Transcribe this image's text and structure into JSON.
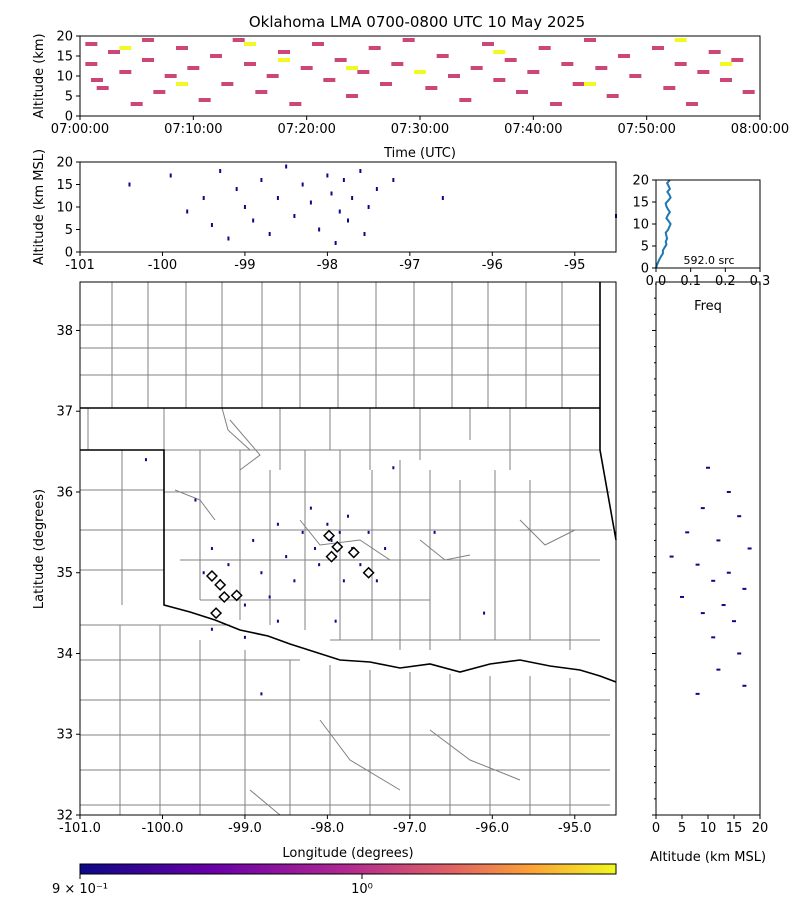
{
  "figure_title": "Oklahoma LMA 0700-0800 UTC 10 May 2025",
  "colors": {
    "station_marker": "#000000",
    "source_low": "#0d0887",
    "source_high": "#f0f921",
    "time_series_mid": "#cc4778",
    "histogram_line": "#1f77b4",
    "county_lines": "#808080",
    "state_lines": "#000000"
  },
  "chart_data": [
    {
      "id": "time-height",
      "type": "scatter",
      "xlabel": "Time (UTC)",
      "ylabel": "Altitude (km)",
      "xlim": [
        "07:00:00",
        "08:00:00"
      ],
      "ylim": [
        0,
        20
      ],
      "x_tick_labels": [
        "07:00:00",
        "07:10:00",
        "07:20:00",
        "07:30:00",
        "07:40:00",
        "07:50:00",
        "08:00:00"
      ],
      "y_tick_labels": [
        "0",
        "5",
        "10",
        "15",
        "20"
      ],
      "series": [
        {
          "color": "#cc4778",
          "points": [
            [
              "07:01:00",
              18
            ],
            [
              "07:01:00",
              13
            ],
            [
              "07:01:30",
              9
            ],
            [
              "07:02:00",
              7
            ],
            [
              "07:03:00",
              16
            ],
            [
              "07:04:00",
              11
            ],
            [
              "07:05:00",
              3
            ],
            [
              "07:06:00",
              19
            ],
            [
              "07:06:00",
              14
            ],
            [
              "07:07:00",
              6
            ],
            [
              "07:08:00",
              10
            ],
            [
              "07:09:00",
              17
            ],
            [
              "07:10:00",
              12
            ],
            [
              "07:11:00",
              4
            ],
            [
              "07:12:00",
              15
            ],
            [
              "07:13:00",
              8
            ],
            [
              "07:14:00",
              19
            ],
            [
              "07:15:00",
              13
            ],
            [
              "07:16:00",
              6
            ],
            [
              "07:17:00",
              10
            ],
            [
              "07:18:00",
              16
            ],
            [
              "07:19:00",
              3
            ],
            [
              "07:20:00",
              12
            ],
            [
              "07:21:00",
              18
            ],
            [
              "07:22:00",
              9
            ],
            [
              "07:23:00",
              14
            ],
            [
              "07:24:00",
              5
            ],
            [
              "07:25:00",
              11
            ],
            [
              "07:26:00",
              17
            ],
            [
              "07:27:00",
              8
            ],
            [
              "07:28:00",
              13
            ],
            [
              "07:29:00",
              19
            ],
            [
              "07:31:00",
              7
            ],
            [
              "07:32:00",
              15
            ],
            [
              "07:33:00",
              10
            ],
            [
              "07:34:00",
              4
            ],
            [
              "07:35:00",
              12
            ],
            [
              "07:36:00",
              18
            ],
            [
              "07:37:00",
              9
            ],
            [
              "07:38:00",
              14
            ],
            [
              "07:39:00",
              6
            ],
            [
              "07:40:00",
              11
            ],
            [
              "07:41:00",
              17
            ],
            [
              "07:42:00",
              3
            ],
            [
              "07:43:00",
              13
            ],
            [
              "07:44:00",
              8
            ],
            [
              "07:45:00",
              19
            ],
            [
              "07:46:00",
              12
            ],
            [
              "07:47:00",
              5
            ],
            [
              "07:48:00",
              15
            ],
            [
              "07:49:00",
              10
            ],
            [
              "07:51:00",
              17
            ],
            [
              "07:52:00",
              7
            ],
            [
              "07:53:00",
              13
            ],
            [
              "07:54:00",
              3
            ],
            [
              "07:55:00",
              11
            ],
            [
              "07:56:00",
              16
            ],
            [
              "07:57:00",
              9
            ],
            [
              "07:58:00",
              14
            ],
            [
              "07:59:00",
              6
            ]
          ]
        },
        {
          "color": "#f0f921",
          "points": [
            [
              "07:04:00",
              17
            ],
            [
              "07:09:00",
              8
            ],
            [
              "07:15:00",
              18
            ],
            [
              "07:18:00",
              14
            ],
            [
              "07:24:00",
              12
            ],
            [
              "07:30:00",
              11
            ],
            [
              "07:37:00",
              16
            ],
            [
              "07:45:00",
              8
            ],
            [
              "07:53:00",
              19
            ],
            [
              "07:57:00",
              13
            ]
          ]
        }
      ]
    },
    {
      "id": "lon-height",
      "type": "scatter",
      "ylabel": "Altitude (km MSL)",
      "xlim": [
        -101,
        -94.5
      ],
      "ylim": [
        0,
        20
      ],
      "x_tick_labels": [
        "-101",
        "-100",
        "-99",
        "-98",
        "-97",
        "-96",
        "-95"
      ],
      "y_tick_labels": [
        "0",
        "5",
        "10",
        "15",
        "20"
      ],
      "series": [
        {
          "color": "#0d0887",
          "points": [
            [
              -100.4,
              15
            ],
            [
              -99.9,
              17
            ],
            [
              -99.7,
              9
            ],
            [
              -99.5,
              12
            ],
            [
              -99.4,
              6
            ],
            [
              -99.3,
              18
            ],
            [
              -99.2,
              3
            ],
            [
              -99.1,
              14
            ],
            [
              -99.0,
              10
            ],
            [
              -98.9,
              7
            ],
            [
              -98.8,
              16
            ],
            [
              -98.7,
              4
            ],
            [
              -98.6,
              12
            ],
            [
              -98.5,
              19
            ],
            [
              -98.4,
              8
            ],
            [
              -98.3,
              15
            ],
            [
              -98.2,
              11
            ],
            [
              -98.1,
              5
            ],
            [
              -98.0,
              17
            ],
            [
              -97.95,
              13
            ],
            [
              -97.9,
              2
            ],
            [
              -97.85,
              9
            ],
            [
              -97.8,
              16
            ],
            [
              -97.75,
              7
            ],
            [
              -97.7,
              12
            ],
            [
              -97.6,
              18
            ],
            [
              -97.55,
              4
            ],
            [
              -97.5,
              10
            ],
            [
              -97.4,
              14
            ],
            [
              -97.2,
              16
            ],
            [
              -96.6,
              12
            ],
            [
              -94.5,
              8
            ]
          ]
        }
      ]
    },
    {
      "id": "altitude-histogram",
      "type": "line",
      "xlabel": "Freq",
      "xlim": [
        0,
        0.3
      ],
      "ylim": [
        0,
        20
      ],
      "x_tick_labels": [
        "0.0",
        "0.1",
        "0.2",
        "0.3"
      ],
      "y_tick_labels": [
        "0",
        "5",
        "10",
        "15",
        "20"
      ],
      "annotation": "592.0 src",
      "series": [
        {
          "color": "#1f77b4",
          "freq": [
            0.0,
            0.003,
            0.006,
            0.01,
            0.015,
            0.02,
            0.02,
            0.025,
            0.03,
            0.028,
            0.032,
            0.03,
            0.028,
            0.035,
            0.038,
            0.042,
            0.036,
            0.03,
            0.034,
            0.04,
            0.035,
            0.03,
            0.028,
            0.035,
            0.042,
            0.038,
            0.033,
            0.04,
            0.036,
            0.032,
            0.04
          ],
          "altitude": [
            0,
            0.7,
            1.3,
            2,
            2.7,
            3.3,
            4,
            4.7,
            5.3,
            6,
            6.7,
            7.3,
            8,
            8.7,
            9.3,
            10,
            10.7,
            11.3,
            12,
            12.7,
            13.3,
            14,
            14.7,
            15.3,
            16,
            16.7,
            17.3,
            18,
            18.7,
            19.3,
            20
          ]
        }
      ]
    },
    {
      "id": "plan-view",
      "type": "scatter",
      "xlabel": "Longitude (degrees)",
      "ylabel": "Latitude (degrees)",
      "xlim": [
        -101,
        -94.5
      ],
      "ylim": [
        32,
        38.6
      ],
      "x_tick_labels": [
        "-101.0",
        "-100.0",
        "-99.0",
        "-98.0",
        "-97.0",
        "-96.0",
        "-95.0"
      ],
      "y_tick_labels": [
        "32",
        "33",
        "34",
        "35",
        "36",
        "37",
        "38"
      ],
      "series": [
        {
          "color": "#0d0887",
          "points": [
            [
              -100.2,
              36.4
            ],
            [
              -99.6,
              35.9
            ],
            [
              -99.4,
              35.3
            ],
            [
              -99.5,
              35.0
            ],
            [
              -99.3,
              34.9
            ],
            [
              -99.2,
              35.1
            ],
            [
              -99.0,
              34.6
            ],
            [
              -98.9,
              35.4
            ],
            [
              -98.8,
              35.0
            ],
            [
              -98.7,
              34.7
            ],
            [
              -98.6,
              35.6
            ],
            [
              -98.5,
              35.2
            ],
            [
              -98.4,
              34.9
            ],
            [
              -98.3,
              35.5
            ],
            [
              -98.2,
              35.8
            ],
            [
              -98.15,
              35.3
            ],
            [
              -98.1,
              35.1
            ],
            [
              -98.0,
              35.6
            ],
            [
              -97.95,
              35.4
            ],
            [
              -97.9,
              35.2
            ],
            [
              -97.85,
              35.5
            ],
            [
              -97.8,
              34.9
            ],
            [
              -97.75,
              35.7
            ],
            [
              -97.7,
              35.3
            ],
            [
              -97.6,
              35.1
            ],
            [
              -97.5,
              35.5
            ],
            [
              -97.4,
              34.9
            ],
            [
              -97.3,
              35.3
            ],
            [
              -97.2,
              36.3
            ],
            [
              -96.7,
              35.5
            ],
            [
              -96.1,
              34.5
            ],
            [
              -99.0,
              34.2
            ],
            [
              -98.6,
              34.4
            ],
            [
              -97.9,
              34.4
            ],
            [
              -98.8,
              33.5
            ],
            [
              -99.4,
              34.3
            ]
          ]
        },
        {
          "label": "stations",
          "color": "#000000",
          "points": [
            [
              -99.4,
              34.96
            ],
            [
              -99.3,
              34.85
            ],
            [
              -99.25,
              34.7
            ],
            [
              -99.1,
              34.72
            ],
            [
              -99.35,
              34.5
            ],
            [
              -97.98,
              35.46
            ],
            [
              -97.88,
              35.32
            ],
            [
              -97.95,
              35.2
            ],
            [
              -97.68,
              35.25
            ],
            [
              -97.5,
              35.0
            ]
          ]
        }
      ]
    },
    {
      "id": "height-lat",
      "type": "scatter",
      "xlabel": "Altitude (km MSL)",
      "xlim": [
        0,
        20
      ],
      "ylim": [
        32,
        38.6
      ],
      "x_tick_labels": [
        "0",
        "5",
        "10",
        "15",
        "20"
      ],
      "series": [
        {
          "color": "#0d0887",
          "points": [
            [
              10,
              36.3
            ],
            [
              14,
              36.0
            ],
            [
              9,
              35.8
            ],
            [
              16,
              35.7
            ],
            [
              6,
              35.5
            ],
            [
              12,
              35.4
            ],
            [
              18,
              35.3
            ],
            [
              3,
              35.2
            ],
            [
              8,
              35.1
            ],
            [
              14,
              35.0
            ],
            [
              11,
              34.9
            ],
            [
              17,
              34.8
            ],
            [
              5,
              34.7
            ],
            [
              13,
              34.6
            ],
            [
              9,
              34.5
            ],
            [
              15,
              34.4
            ],
            [
              11,
              34.2
            ],
            [
              16,
              34.0
            ],
            [
              12,
              33.8
            ],
            [
              17,
              33.6
            ],
            [
              8,
              33.5
            ]
          ]
        }
      ]
    },
    {
      "id": "colorbar",
      "type": "heatmap",
      "tick_labels": [
        "9 × 10⁻¹",
        "10⁰"
      ],
      "scale": "log",
      "range": [
        0.9,
        1.2
      ]
    }
  ]
}
